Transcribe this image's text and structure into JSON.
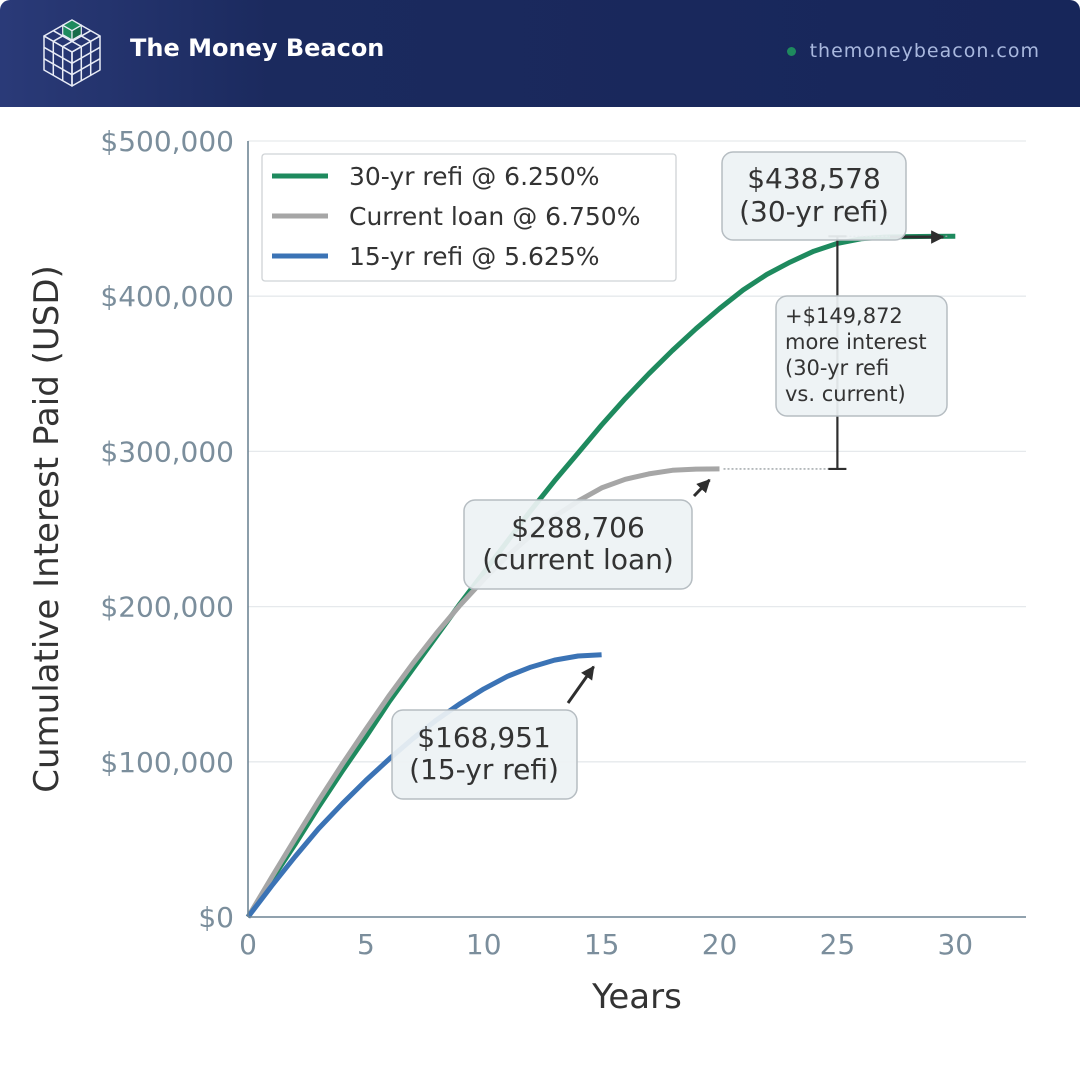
{
  "header": {
    "brand": "The Money Beacon",
    "website": "themoneybeacon.com",
    "logo_icon": "isometric-cube-icon",
    "colors": {
      "background": "#17265a",
      "accent": "#1e8a5e",
      "website_text": "#a9b8de"
    }
  },
  "chart_data": {
    "type": "line",
    "title": "",
    "xlabel": "Years",
    "ylabel": "Cumulative Interest Paid (USD)",
    "xlim": [
      0,
      33
    ],
    "ylim": [
      0,
      500000
    ],
    "x_ticks": [
      0,
      5,
      10,
      15,
      20,
      25,
      30
    ],
    "y_ticks": [
      0,
      100000,
      200000,
      300000,
      400000,
      500000
    ],
    "y_tick_labels": [
      "$0",
      "$100,000",
      "$200,000",
      "$300,000",
      "$400,000",
      "$500,000"
    ],
    "grid": "horizontal",
    "legend_position": "top-left",
    "series": [
      {
        "name": "30-yr refi @ 6.250%",
        "color": "#1e8a5e",
        "x": [
          0,
          1,
          2,
          3,
          4,
          5,
          6,
          7,
          8,
          9,
          10,
          11,
          12,
          13,
          14,
          15,
          16,
          17,
          18,
          19,
          20,
          21,
          22,
          23,
          24,
          25,
          26,
          27,
          28,
          29,
          30
        ],
        "y": [
          0,
          24000,
          47000,
          71000,
          94000,
          116000,
          139000,
          160000,
          181000,
          202000,
          222000,
          242000,
          262000,
          281000,
          299000,
          317000,
          334000,
          350000,
          365000,
          379000,
          392000,
          404000,
          414000,
          422000,
          429000,
          434000,
          437000,
          438100,
          438400,
          438500,
          438578
        ]
      },
      {
        "name": "Current loan @ 6.750%",
        "color": "#a6a6a6",
        "x": [
          0,
          1,
          2,
          3,
          4,
          5,
          6,
          7,
          8,
          9,
          10,
          11,
          12,
          13,
          14,
          15,
          16,
          17,
          18,
          19,
          20
        ],
        "y": [
          0,
          25500,
          50500,
          75000,
          98500,
          121000,
          143000,
          163500,
          183000,
          201000,
          217500,
          232500,
          246000,
          258000,
          268000,
          276500,
          282000,
          285500,
          287800,
          288600,
          288706
        ]
      },
      {
        "name": "15-yr refi @ 5.625%",
        "color": "#3b73b5",
        "x": [
          0,
          1,
          2,
          3,
          4,
          5,
          6,
          7,
          8,
          9,
          10,
          11,
          12,
          13,
          14,
          15
        ],
        "y": [
          0,
          20000,
          39000,
          57000,
          73000,
          88000,
          102000,
          115000,
          127000,
          137500,
          147000,
          155000,
          161000,
          165500,
          168200,
          168951
        ]
      }
    ],
    "annotations": [
      {
        "text_lines": [
          "$438,578",
          "(30-yr refi)"
        ],
        "point": [
          30,
          438578
        ]
      },
      {
        "text_lines": [
          "$288,706",
          "(current loan)"
        ],
        "point": [
          20,
          288706
        ]
      },
      {
        "text_lines": [
          "$168,951",
          "(15-yr refi)"
        ],
        "point": [
          15,
          168951
        ]
      },
      {
        "text_lines": [
          "+$149,872",
          "more interest",
          "(30-yr refi",
          "vs. current)"
        ],
        "x": 25,
        "y_range": [
          288706,
          438578
        ]
      }
    ],
    "colors": {
      "axis": "#6f8594",
      "tick_text": "#7b8e9c",
      "label_text": "#333333",
      "annotation_bg": "#edf2f4"
    }
  }
}
